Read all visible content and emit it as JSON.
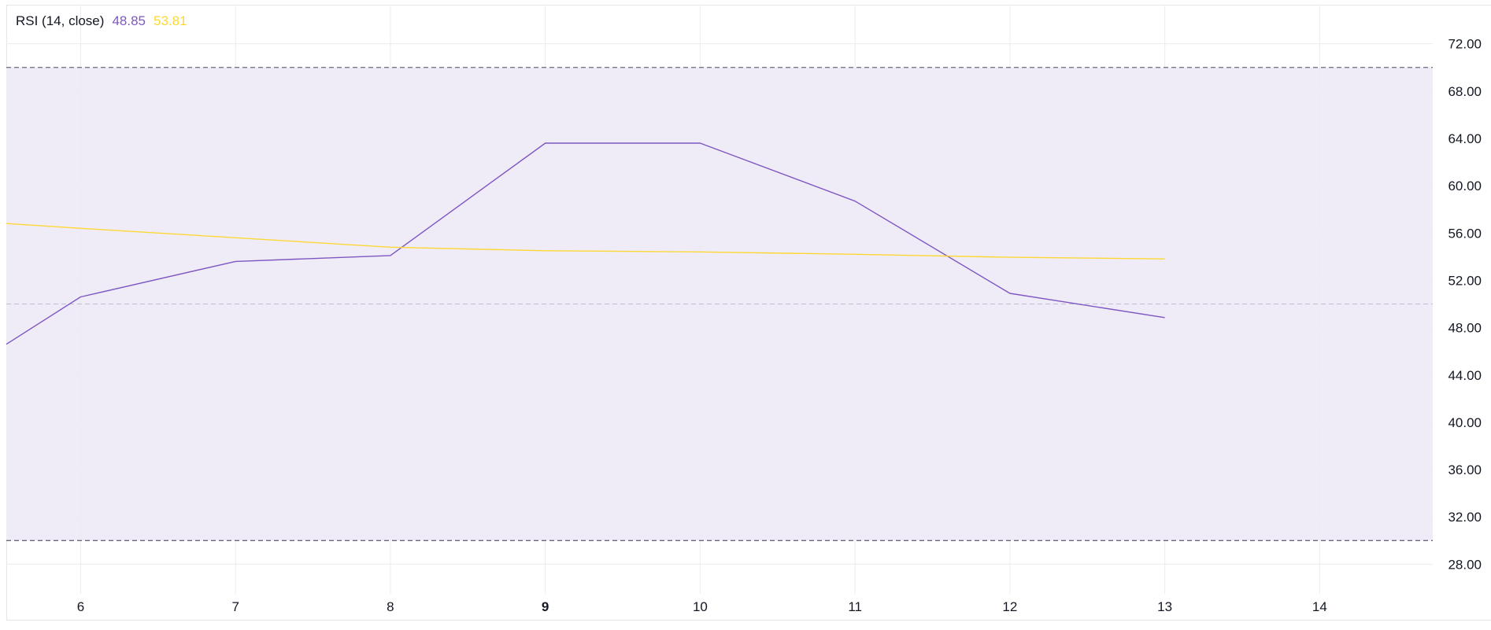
{
  "legend": {
    "title": "RSI (14, close)",
    "rsi_value": "48.85",
    "ma_value": "53.81"
  },
  "colors": {
    "rsi": "#7e57c2",
    "ma": "#fdd835",
    "band_fill": "#efebf7",
    "band_line": "#6a6a7a",
    "grid": "#ececf0"
  },
  "chart_data": {
    "type": "line",
    "x": [
      5.52,
      6,
      7,
      8,
      9,
      10,
      11,
      12,
      13
    ],
    "x_ticks": [
      "6",
      "7",
      "8",
      "9",
      "10",
      "11",
      "12",
      "13",
      "14"
    ],
    "x_tick_values": [
      6,
      7,
      8,
      9,
      10,
      11,
      12,
      13,
      14
    ],
    "x_bold_tick": "9",
    "xlim": [
      5.52,
      14.73
    ],
    "ylim": [
      25.5,
      75.3
    ],
    "y_ticks": [
      "28.00",
      "32.00",
      "36.00",
      "40.00",
      "44.00",
      "48.00",
      "52.00",
      "56.00",
      "60.00",
      "64.00",
      "68.00",
      "72.00"
    ],
    "y_tick_values": [
      28,
      32,
      36,
      40,
      44,
      48,
      52,
      56,
      60,
      64,
      68,
      72
    ],
    "bands": {
      "upper": 70,
      "middle": 50,
      "lower": 30
    },
    "series": [
      {
        "key": "rsi",
        "x": [
          5.52,
          6,
          7,
          8,
          9,
          10,
          11,
          12,
          13
        ],
        "values": [
          46.6,
          50.6,
          53.6,
          54.1,
          63.6,
          63.6,
          58.7,
          50.9,
          48.85
        ]
      },
      {
        "key": "ma",
        "x": [
          5.52,
          6,
          7,
          8,
          9,
          10,
          11,
          12,
          13
        ],
        "values": [
          56.8,
          56.4,
          55.6,
          54.8,
          54.5,
          54.4,
          54.2,
          53.95,
          53.81
        ]
      }
    ],
    "grid": true
  }
}
